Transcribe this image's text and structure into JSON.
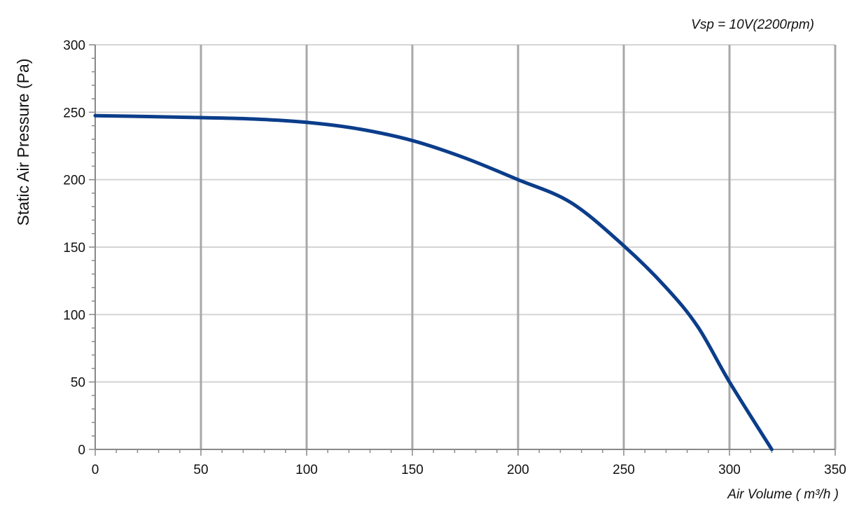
{
  "chart_data": {
    "type": "line",
    "annotation": "Vsp = 10V(2200rpm)",
    "xlabel": "Air Volume ( m³/h )",
    "ylabel": "Static Air Pressure  (Pa)",
    "xlim": [
      0,
      350
    ],
    "ylim": [
      0,
      300
    ],
    "x_ticks": [
      "0",
      "50",
      "100",
      "150",
      "200",
      "250",
      "300",
      "350"
    ],
    "y_ticks": [
      "0",
      "50",
      "100",
      "150",
      "200",
      "250",
      "300"
    ],
    "grid": true,
    "series": [
      {
        "x": [
          0,
          25,
          50,
          75,
          100,
          125,
          150,
          175,
          200,
          225,
          250,
          270,
          285,
          300,
          320
        ],
        "y": [
          247.5,
          246.8,
          246,
          245,
          242.5,
          237.5,
          229,
          216,
          200,
          183,
          151,
          120,
          91,
          50,
          0
        ]
      }
    ],
    "colors": {
      "line": "#0b3d8a",
      "grid_major": "#a8a8a8",
      "grid_minor": "#d4d4d4",
      "axis": "#888888"
    }
  }
}
